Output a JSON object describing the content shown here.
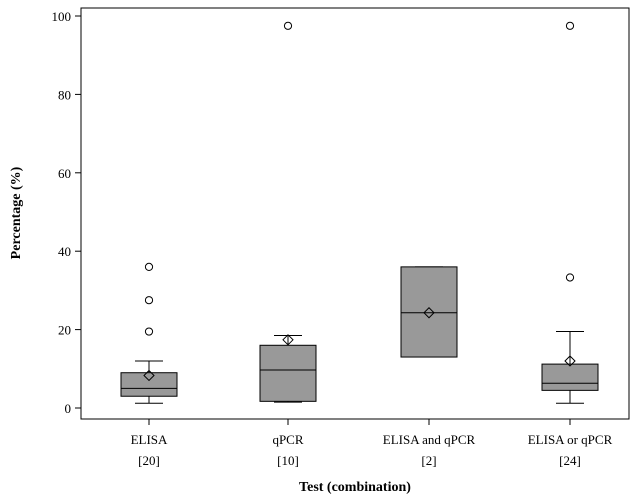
{
  "chart_data": {
    "type": "boxplot",
    "xlabel": "Test (combination)",
    "ylabel": "Percentage (%)",
    "ylim": [
      -3,
      102
    ],
    "yticks": [
      0,
      20,
      40,
      60,
      80,
      100
    ],
    "grid": false,
    "legend": "none",
    "mean_marker": "diamond",
    "outlier_marker": "circle",
    "box_color": "#999999",
    "categories": [
      {
        "label": "ELISA",
        "n_label": "[20]",
        "whisker_low": 1.2,
        "q1": 3.0,
        "median": 5.0,
        "q3": 9.0,
        "whisker_high": 12.0,
        "mean": 8.3,
        "outliers": [
          19.5,
          27.5,
          36.0
        ]
      },
      {
        "label": "qPCR",
        "n_label": "[10]",
        "whisker_low": 1.5,
        "q1": 1.7,
        "median": 9.7,
        "q3": 16.0,
        "whisker_high": 18.5,
        "mean": 17.4,
        "outliers": [
          97.5
        ]
      },
      {
        "label": "ELISA and qPCR",
        "n_label": "[2]",
        "whisker_low": 13.0,
        "q1": 13.0,
        "median": 24.3,
        "q3": 36.0,
        "whisker_high": 36.0,
        "mean": 24.3,
        "outliers": []
      },
      {
        "label": "ELISA or qPCR",
        "n_label": "[24]",
        "whisker_low": 1.2,
        "q1": 4.5,
        "median": 6.3,
        "q3": 11.2,
        "whisker_high": 19.5,
        "mean": 12.0,
        "outliers": [
          33.3,
          97.5
        ]
      }
    ]
  }
}
